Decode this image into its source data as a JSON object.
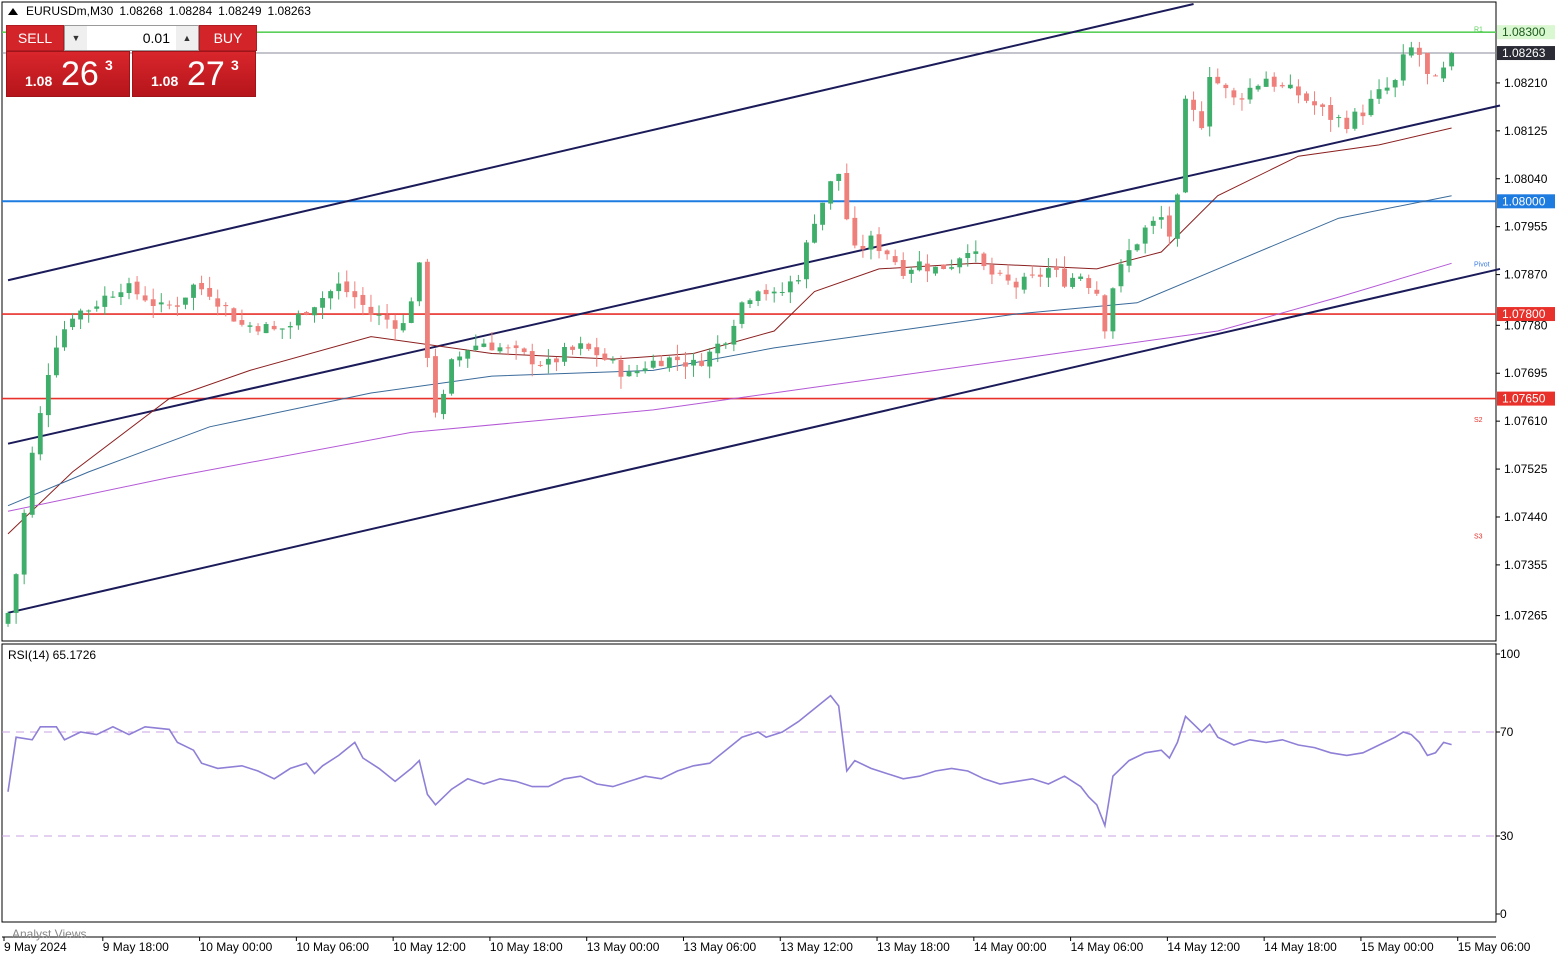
{
  "header": {
    "symbol": "EURUSDm,M30",
    "open": "1.08268",
    "high": "1.08284",
    "low": "1.08249",
    "close": "1.08263"
  },
  "trade_panel": {
    "sell_label": "SELL",
    "buy_label": "BUY",
    "lot": "0.01",
    "sell_prefix": "1.08",
    "sell_big": "26",
    "sell_sup": "3",
    "buy_prefix": "1.08",
    "buy_big": "27",
    "buy_sup": "3"
  },
  "colors": {
    "bull": "#3fae6a",
    "bear": "#ef7f7a",
    "red_line": "#e8312a",
    "blue_line": "#1e7be0",
    "green_line": "#5ad05a",
    "channel": "#1b1b5a",
    "ma_fast": "#8b1f1f",
    "ma_mid": "#3a6a9a",
    "ma_slow": "#b458d6",
    "rsi": "#8f7fd6"
  },
  "chart_data": [
    {
      "type": "candlestick",
      "title": "EURUSDm,M30",
      "ylim": [
        1.0722,
        1.0835
      ],
      "y_ticks": [
        "1.08210",
        "1.08125",
        "1.08040",
        "1.07955",
        "1.07870",
        "1.07780",
        "1.07695",
        "1.07610",
        "1.07525",
        "1.07440",
        "1.07355",
        "1.07265"
      ],
      "x_ticks": [
        "9 May 2024",
        "9 May 18:00",
        "10 May 00:00",
        "10 May 06:00",
        "10 May 12:00",
        "10 May 18:00",
        "13 May 00:00",
        "13 May 06:00",
        "13 May 12:00",
        "13 May 18:00",
        "14 May 00:00",
        "14 May 06:00",
        "14 May 12:00",
        "14 May 18:00",
        "15 May 00:00",
        "15 May 06:00"
      ],
      "current_price": "1.08263",
      "horizontal_levels": [
        {
          "price": 1.083,
          "label": "1.08300",
          "role": "green"
        },
        {
          "price": 1.08,
          "label": "1.08000",
          "role": "blue"
        },
        {
          "price": 1.078,
          "label": "1.07800",
          "role": "red"
        },
        {
          "price": 1.0765,
          "label": "1.07650",
          "role": "red"
        }
      ],
      "pivot_labels": [
        {
          "text": "R1",
          "price": 1.08305
        },
        {
          "text": "Pivot",
          "price": 1.07888
        },
        {
          "text": "S2",
          "price": 1.07612
        },
        {
          "text": "S3",
          "price": 1.07405
        }
      ],
      "channel_lines": [
        {
          "from_bar": 0,
          "from_price": 1.0786,
          "to_bar": 147,
          "to_price": 1.0835
        },
        {
          "from_bar": 0,
          "from_price": 1.0757,
          "to_bar": 185,
          "to_price": 1.0817
        },
        {
          "from_bar": 0,
          "from_price": 1.0727,
          "to_bar": 185,
          "to_price": 1.0788
        }
      ],
      "close_path": [
        [
          0,
          1.0727
        ],
        [
          1,
          1.0734
        ],
        [
          3,
          1.0755
        ],
        [
          4,
          1.0762
        ],
        [
          5,
          1.077
        ],
        [
          6,
          1.0775
        ],
        [
          8,
          1.078
        ],
        [
          10,
          1.0781
        ],
        [
          12,
          1.0783
        ],
        [
          14,
          1.0785
        ],
        [
          17,
          1.0783
        ],
        [
          19,
          1.0781
        ],
        [
          21,
          1.0782
        ],
        [
          23,
          1.0785
        ],
        [
          25,
          1.0784
        ],
        [
          27,
          1.0781
        ],
        [
          29,
          1.0778
        ],
        [
          31,
          1.0778
        ],
        [
          33,
          1.0777
        ],
        [
          35,
          1.0778
        ],
        [
          37,
          1.0781
        ],
        [
          39,
          1.0783
        ],
        [
          41,
          1.0785
        ],
        [
          43,
          1.0783
        ],
        [
          45,
          1.078
        ],
        [
          47,
          1.0779
        ],
        [
          49,
          1.0778
        ],
        [
          51,
          1.0788
        ],
        [
          52,
          1.0773
        ],
        [
          53,
          1.0763
        ],
        [
          54,
          1.0765
        ],
        [
          55,
          1.0771
        ],
        [
          57,
          1.0774
        ],
        [
          59,
          1.0775
        ],
        [
          61,
          1.0774
        ],
        [
          63,
          1.0773
        ],
        [
          65,
          1.0772
        ],
        [
          67,
          1.0771
        ],
        [
          69,
          1.0773
        ],
        [
          71,
          1.0774
        ],
        [
          73,
          1.0773
        ],
        [
          75,
          1.0771
        ],
        [
          77,
          1.0769
        ],
        [
          79,
          1.0771
        ],
        [
          81,
          1.0772
        ],
        [
          83,
          1.0772
        ],
        [
          85,
          1.0771
        ],
        [
          87,
          1.0773
        ],
        [
          89,
          1.0776
        ],
        [
          91,
          1.0782
        ],
        [
          93,
          1.0785
        ],
        [
          95,
          1.0783
        ],
        [
          96,
          1.0784
        ],
        [
          98,
          1.0787
        ],
        [
          100,
          1.0797
        ],
        [
          102,
          1.0803
        ],
        [
          103,
          1.0805
        ],
        [
          104,
          1.0797
        ],
        [
          105,
          1.0791
        ],
        [
          107,
          1.0793
        ],
        [
          109,
          1.0791
        ],
        [
          111,
          1.0788
        ],
        [
          113,
          1.0789
        ],
        [
          115,
          1.0788
        ],
        [
          117,
          1.0789
        ],
        [
          119,
          1.0792
        ],
        [
          121,
          1.0788
        ],
        [
          123,
          1.0786
        ],
        [
          125,
          1.0785
        ],
        [
          127,
          1.0786
        ],
        [
          129,
          1.0788
        ],
        [
          131,
          1.0786
        ],
        [
          133,
          1.0787
        ],
        [
          135,
          1.0784
        ],
        [
          136,
          1.0778
        ],
        [
          137,
          1.0785
        ],
        [
          139,
          1.0791
        ],
        [
          141,
          1.0795
        ],
        [
          143,
          1.0797
        ],
        [
          144,
          1.0794
        ],
        [
          145,
          1.08
        ],
        [
          146,
          1.0817
        ],
        [
          148,
          1.0814
        ],
        [
          149,
          1.0823
        ],
        [
          150,
          1.0821
        ],
        [
          152,
          1.0818
        ],
        [
          154,
          1.082
        ],
        [
          156,
          1.0822
        ],
        [
          158,
          1.082
        ],
        [
          160,
          1.0819
        ],
        [
          162,
          1.0817
        ],
        [
          164,
          1.0815
        ],
        [
          166,
          1.0814
        ],
        [
          168,
          1.0816
        ],
        [
          170,
          1.0819
        ],
        [
          172,
          1.0821
        ],
        [
          173,
          1.0825
        ],
        [
          174,
          1.0827
        ],
        [
          175,
          1.0826
        ],
        [
          176,
          1.0822
        ],
        [
          177,
          1.0821
        ],
        [
          178,
          1.0823
        ],
        [
          179,
          1.08263
        ]
      ],
      "moving_averages": [
        {
          "role": "fast",
          "points": [
            [
              0,
              1.0741
            ],
            [
              8,
              1.0752
            ],
            [
              20,
              1.0765
            ],
            [
              30,
              1.077
            ],
            [
              45,
              1.0776
            ],
            [
              60,
              1.0773
            ],
            [
              75,
              1.0772
            ],
            [
              85,
              1.0773
            ],
            [
              95,
              1.0777
            ],
            [
              100,
              1.0784
            ],
            [
              108,
              1.0788
            ],
            [
              120,
              1.0789
            ],
            [
              135,
              1.0788
            ],
            [
              143,
              1.0791
            ],
            [
              150,
              1.0801
            ],
            [
              160,
              1.0808
            ],
            [
              170,
              1.081
            ],
            [
              179,
              1.0813
            ]
          ]
        },
        {
          "role": "mid",
          "points": [
            [
              0,
              1.0746
            ],
            [
              10,
              1.0752
            ],
            [
              25,
              1.076
            ],
            [
              45,
              1.0766
            ],
            [
              60,
              1.0769
            ],
            [
              80,
              1.077
            ],
            [
              95,
              1.0774
            ],
            [
              110,
              1.0777
            ],
            [
              125,
              1.078
            ],
            [
              140,
              1.0782
            ],
            [
              150,
              1.0788
            ],
            [
              165,
              1.0797
            ],
            [
              179,
              1.0801
            ]
          ]
        },
        {
          "role": "slow",
          "points": [
            [
              0,
              1.0745
            ],
            [
              20,
              1.0751
            ],
            [
              50,
              1.0759
            ],
            [
              80,
              1.0763
            ],
            [
              100,
              1.0767
            ],
            [
              125,
              1.0772
            ],
            [
              150,
              1.0777
            ],
            [
              165,
              1.0783
            ],
            [
              179,
              1.0789
            ]
          ]
        }
      ]
    },
    {
      "type": "line",
      "title": "RSI(14) 65.1726",
      "ylim": [
        0,
        100
      ],
      "y_ticks": [
        "100",
        "70",
        "30",
        "0"
      ],
      "levels": [
        70,
        30
      ],
      "values": [
        [
          0,
          47
        ],
        [
          1,
          68
        ],
        [
          3,
          67
        ],
        [
          4,
          72
        ],
        [
          6,
          72
        ],
        [
          7,
          67
        ],
        [
          9,
          70
        ],
        [
          11,
          69
        ],
        [
          13,
          72
        ],
        [
          15,
          69
        ],
        [
          17,
          72
        ],
        [
          20,
          71
        ],
        [
          21,
          66
        ],
        [
          23,
          63
        ],
        [
          24,
          58
        ],
        [
          26,
          56
        ],
        [
          29,
          57
        ],
        [
          31,
          55
        ],
        [
          33,
          52
        ],
        [
          35,
          56
        ],
        [
          37,
          58
        ],
        [
          38,
          54
        ],
        [
          39,
          57
        ],
        [
          41,
          61
        ],
        [
          43,
          66
        ],
        [
          44,
          60
        ],
        [
          46,
          56
        ],
        [
          48,
          51
        ],
        [
          50,
          56
        ],
        [
          51,
          59
        ],
        [
          52,
          46
        ],
        [
          53,
          42
        ],
        [
          55,
          48
        ],
        [
          57,
          52
        ],
        [
          59,
          50
        ],
        [
          61,
          52
        ],
        [
          63,
          51
        ],
        [
          65,
          49
        ],
        [
          67,
          49
        ],
        [
          69,
          52
        ],
        [
          71,
          53
        ],
        [
          73,
          50
        ],
        [
          75,
          49
        ],
        [
          77,
          51
        ],
        [
          79,
          53
        ],
        [
          81,
          52
        ],
        [
          83,
          55
        ],
        [
          85,
          57
        ],
        [
          87,
          58
        ],
        [
          89,
          63
        ],
        [
          91,
          68
        ],
        [
          93,
          70
        ],
        [
          94,
          68
        ],
        [
          96,
          70
        ],
        [
          98,
          74
        ],
        [
          100,
          79
        ],
        [
          102,
          84
        ],
        [
          103,
          80
        ],
        [
          104,
          55
        ],
        [
          105,
          59
        ],
        [
          107,
          56
        ],
        [
          109,
          54
        ],
        [
          111,
          52
        ],
        [
          113,
          53
        ],
        [
          115,
          55
        ],
        [
          117,
          56
        ],
        [
          119,
          55
        ],
        [
          121,
          52
        ],
        [
          123,
          50
        ],
        [
          125,
          51
        ],
        [
          127,
          52
        ],
        [
          129,
          50
        ],
        [
          131,
          53
        ],
        [
          133,
          49
        ],
        [
          134,
          45
        ],
        [
          135,
          42
        ],
        [
          136,
          34
        ],
        [
          137,
          53
        ],
        [
          139,
          59
        ],
        [
          141,
          62
        ],
        [
          143,
          63
        ],
        [
          144,
          60
        ],
        [
          145,
          66
        ],
        [
          146,
          76
        ],
        [
          147,
          73
        ],
        [
          148,
          70
        ],
        [
          149,
          73
        ],
        [
          150,
          68
        ],
        [
          152,
          65
        ],
        [
          154,
          67
        ],
        [
          156,
          66
        ],
        [
          158,
          67
        ],
        [
          160,
          65
        ],
        [
          162,
          64
        ],
        [
          164,
          62
        ],
        [
          166,
          61
        ],
        [
          168,
          62
        ],
        [
          170,
          65
        ],
        [
          172,
          68
        ],
        [
          173,
          70
        ],
        [
          174,
          69
        ],
        [
          175,
          66
        ],
        [
          176,
          61
        ],
        [
          177,
          62
        ],
        [
          178,
          66
        ],
        [
          179,
          65.17
        ]
      ]
    }
  ],
  "watermark_text": "Analyst Views"
}
